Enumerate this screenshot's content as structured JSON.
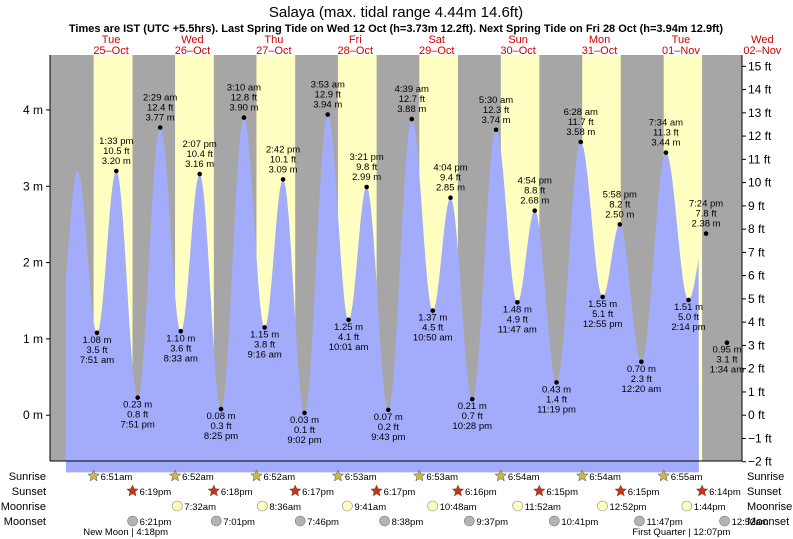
{
  "title": "Salaya (max. tidal range 4.44m 14.6ft)",
  "subtitle": "Times are IST (UTC +5.5hrs). Last Spring Tide on Wed 12 Oct (h=3.73m 12.2ft). Next Spring Tide on Fri 28 Oct (h=3.94m 12.9ft)",
  "colors": {
    "night": "#a6a6a6",
    "day": "#ffffc2",
    "tide_fill": "#a3acfb",
    "text_red": "#d00000",
    "sun_star": "#c8b848",
    "sunset_star": "#d03010",
    "moon": "#ffffc0",
    "moonset": "#b4b4ae"
  },
  "chart_data": {
    "type": "area",
    "x_unit": "hours since 25-Oct 00:00",
    "days": [
      {
        "dow": "Tue",
        "date": "25–Oct"
      },
      {
        "dow": "Wed",
        "date": "26–Oct"
      },
      {
        "dow": "Thu",
        "date": "27–Oct"
      },
      {
        "dow": "Fri",
        "date": "28–Oct"
      },
      {
        "dow": "Sat",
        "date": "29–Oct"
      },
      {
        "dow": "Sun",
        "date": "30–Oct"
      },
      {
        "dow": "Mon",
        "date": "31–Oct"
      },
      {
        "dow": "Tue",
        "date": "01–Nov"
      },
      {
        "dow": "Wed",
        "date": "02–Nov"
      }
    ],
    "y_left": {
      "unit": "m",
      "range": [
        -0.6,
        4.72
      ],
      "ticks": [
        {
          "v": 0,
          "label": "0 m"
        },
        {
          "v": 1,
          "label": "1 m"
        },
        {
          "v": 2,
          "label": "2 m"
        },
        {
          "v": 3,
          "label": "3 m"
        },
        {
          "v": 4,
          "label": "4 m"
        }
      ]
    },
    "y_right": {
      "unit": "ft",
      "ticks": [
        "15 ft",
        "14 ft",
        "13 ft",
        "12 ft",
        "11 ft",
        "10 ft",
        "9 ft",
        "8 ft",
        "7 ft",
        "6 ft",
        "5 ft",
        "4 ft",
        "3 ft",
        "2 ft",
        "1 ft",
        "0 ft",
        "−1 ft",
        "−2 ft"
      ]
    },
    "x_range": [
      -6,
      198
    ],
    "curve_range": [
      -1.3,
      185.3
    ],
    "tides": [
      {
        "t": 7.85,
        "h": 1.08,
        "type": "low",
        "m": "1.08 m",
        "ft": "3.5 ft",
        "time": "7:51 am"
      },
      {
        "t": 13.55,
        "h": 3.2,
        "type": "high",
        "m": "3.20 m",
        "ft": "10.5 ft",
        "time": "1:33 pm"
      },
      {
        "t": 19.85,
        "h": 0.23,
        "type": "low",
        "m": "0.23 m",
        "ft": "0.8 ft",
        "time": "7:51 pm"
      },
      {
        "t": 26.48,
        "h": 3.77,
        "type": "high",
        "m": "3.77 m",
        "ft": "12.4 ft",
        "time": "2:29 am"
      },
      {
        "t": 32.55,
        "h": 1.1,
        "type": "low",
        "m": "1.10 m",
        "ft": "3.6 ft",
        "time": "8:33 am"
      },
      {
        "t": 38.12,
        "h": 3.16,
        "type": "high",
        "m": "3.16 m",
        "ft": "10.4 ft",
        "time": "2:07 pm"
      },
      {
        "t": 44.42,
        "h": 0.08,
        "type": "low",
        "m": "0.08 m",
        "ft": "0.3 ft",
        "time": "8:25 pm"
      },
      {
        "t": 51.17,
        "h": 3.9,
        "type": "high",
        "m": "3.90 m",
        "ft": "12.8 ft",
        "time": "3:10 am"
      },
      {
        "t": 57.27,
        "h": 1.15,
        "type": "low",
        "m": "1.15 m",
        "ft": "3.8 ft",
        "time": "9:16 am"
      },
      {
        "t": 62.7,
        "h": 3.09,
        "type": "high",
        "m": "3.09 m",
        "ft": "10.1 ft",
        "time": "2:42 pm"
      },
      {
        "t": 69.03,
        "h": 0.03,
        "type": "low",
        "m": "0.03 m",
        "ft": "0.1 ft",
        "time": "9:02 pm"
      },
      {
        "t": 75.88,
        "h": 3.94,
        "type": "high",
        "m": "3.94 m",
        "ft": "12.9 ft",
        "time": "3:53 am"
      },
      {
        "t": 82.02,
        "h": 1.25,
        "type": "low",
        "m": "1.25 m",
        "ft": "4.1 ft",
        "time": "10:01 am"
      },
      {
        "t": 87.35,
        "h": 2.99,
        "type": "high",
        "m": "2.99 m",
        "ft": "9.8 ft",
        "time": "3:21 pm"
      },
      {
        "t": 93.72,
        "h": 0.07,
        "type": "low",
        "m": "0.07 m",
        "ft": "0.2 ft",
        "time": "9:43 pm"
      },
      {
        "t": 100.65,
        "h": 3.88,
        "type": "high",
        "m": "3.88 m",
        "ft": "12.7 ft",
        "time": "4:39 am"
      },
      {
        "t": 106.83,
        "h": 1.37,
        "type": "low",
        "m": "1.37 m",
        "ft": "4.5 ft",
        "time": "10:50 am"
      },
      {
        "t": 112.07,
        "h": 2.85,
        "type": "high",
        "m": "2.85 m",
        "ft": "9.4 ft",
        "time": "4:04 pm"
      },
      {
        "t": 118.47,
        "h": 0.21,
        "type": "low",
        "m": "0.21 m",
        "ft": "0.7 ft",
        "time": "10:28 pm"
      },
      {
        "t": 125.5,
        "h": 3.74,
        "type": "high",
        "m": "3.74 m",
        "ft": "12.3 ft",
        "time": "5:30 am"
      },
      {
        "t": 131.78,
        "h": 1.48,
        "type": "low",
        "m": "1.48 m",
        "ft": "4.9 ft",
        "time": "11:47 am"
      },
      {
        "t": 136.9,
        "h": 2.68,
        "type": "high",
        "m": "2.68 m",
        "ft": "8.8 ft",
        "time": "4:54 pm"
      },
      {
        "t": 143.32,
        "h": 0.43,
        "type": "low",
        "m": "0.43 m",
        "ft": "1.4 ft",
        "time": "11:19 pm"
      },
      {
        "t": 150.47,
        "h": 3.58,
        "type": "high",
        "m": "3.58 m",
        "ft": "11.7 ft",
        "time": "6:28 am"
      },
      {
        "t": 156.92,
        "h": 1.55,
        "type": "low",
        "m": "1.55 m",
        "ft": "5.1 ft",
        "time": "12:55 pm"
      },
      {
        "t": 161.97,
        "h": 2.5,
        "type": "high",
        "m": "2.50 m",
        "ft": "8.2 ft",
        "time": "5:58 pm"
      },
      {
        "t": 168.33,
        "h": 0.7,
        "type": "low",
        "m": "0.70 m",
        "ft": "2.3 ft",
        "time": "12:20 am"
      },
      {
        "t": 175.57,
        "h": 3.44,
        "type": "high",
        "m": "3.44 m",
        "ft": "11.3 ft",
        "time": "7:34 am"
      },
      {
        "t": 182.23,
        "h": 1.51,
        "type": "low",
        "m": "1.51 m",
        "ft": "5.0 ft",
        "time": "2:14 pm"
      },
      {
        "t": 187.4,
        "h": 2.38,
        "type": "high",
        "m": "2.38 m",
        "ft": "7.8 ft",
        "time": "7:24 pm"
      },
      {
        "t": 193.57,
        "h": 0.95,
        "type": "low",
        "m": "0.95 m",
        "ft": "3.1 ft",
        "time": "1:34 am"
      }
    ],
    "daylight": [
      {
        "rise": 6.85,
        "set": 18.32
      },
      {
        "rise": 30.87,
        "set": 42.3
      },
      {
        "rise": 54.87,
        "set": 66.28
      },
      {
        "rise": 78.88,
        "set": 90.28
      },
      {
        "rise": 102.88,
        "set": 114.27
      },
      {
        "rise": 126.9,
        "set": 138.25
      },
      {
        "rise": 150.9,
        "set": 162.25
      },
      {
        "rise": 174.92,
        "set": 186.23
      }
    ],
    "events": {
      "row_labels": [
        "Sunrise",
        "Sunset",
        "Moonrise",
        "Moonset"
      ],
      "sunrise": [
        {
          "t": 6.85,
          "label": "6:51am"
        },
        {
          "t": 30.87,
          "label": "6:52am"
        },
        {
          "t": 54.87,
          "label": "6:52am"
        },
        {
          "t": 78.88,
          "label": "6:53am"
        },
        {
          "t": 102.88,
          "label": "6:53am"
        },
        {
          "t": 126.9,
          "label": "6:54am"
        },
        {
          "t": 150.9,
          "label": "6:54am"
        },
        {
          "t": 174.92,
          "label": "6:55am"
        }
      ],
      "sunset": [
        {
          "t": 18.32,
          "label": "6:19pm"
        },
        {
          "t": 42.3,
          "label": "6:18pm"
        },
        {
          "t": 66.28,
          "label": "6:17pm"
        },
        {
          "t": 90.28,
          "label": "6:17pm"
        },
        {
          "t": 114.27,
          "label": "6:16pm"
        },
        {
          "t": 138.25,
          "label": "6:15pm"
        },
        {
          "t": 162.25,
          "label": "6:15pm"
        },
        {
          "t": 186.23,
          "label": "6:14pm"
        }
      ],
      "moonrise": [
        {
          "t": 31.53,
          "label": "7:32am"
        },
        {
          "t": 56.6,
          "label": "8:36am"
        },
        {
          "t": 81.68,
          "label": "9:41am"
        },
        {
          "t": 106.8,
          "label": "10:48am"
        },
        {
          "t": 131.87,
          "label": "11:52am"
        },
        {
          "t": 156.87,
          "label": "12:52pm"
        },
        {
          "t": 181.73,
          "label": "1:44pm"
        }
      ],
      "moonset": [
        {
          "t": 18.35,
          "label": "6:21pm"
        },
        {
          "t": 43.02,
          "label": "7:01pm"
        },
        {
          "t": 67.77,
          "label": "7:46pm"
        },
        {
          "t": 92.63,
          "label": "8:38pm"
        },
        {
          "t": 117.62,
          "label": "9:37pm"
        },
        {
          "t": 142.68,
          "label": "10:41pm"
        },
        {
          "t": 167.78,
          "label": "11:47pm"
        },
        {
          "t": 192.87,
          "label": "12:52am"
        }
      ],
      "moon_phases": [
        {
          "t": 16.3,
          "label": "New Moon | 4:18pm"
        },
        {
          "t": 180.12,
          "label": "First Quarter | 12:07pm"
        }
      ]
    }
  }
}
